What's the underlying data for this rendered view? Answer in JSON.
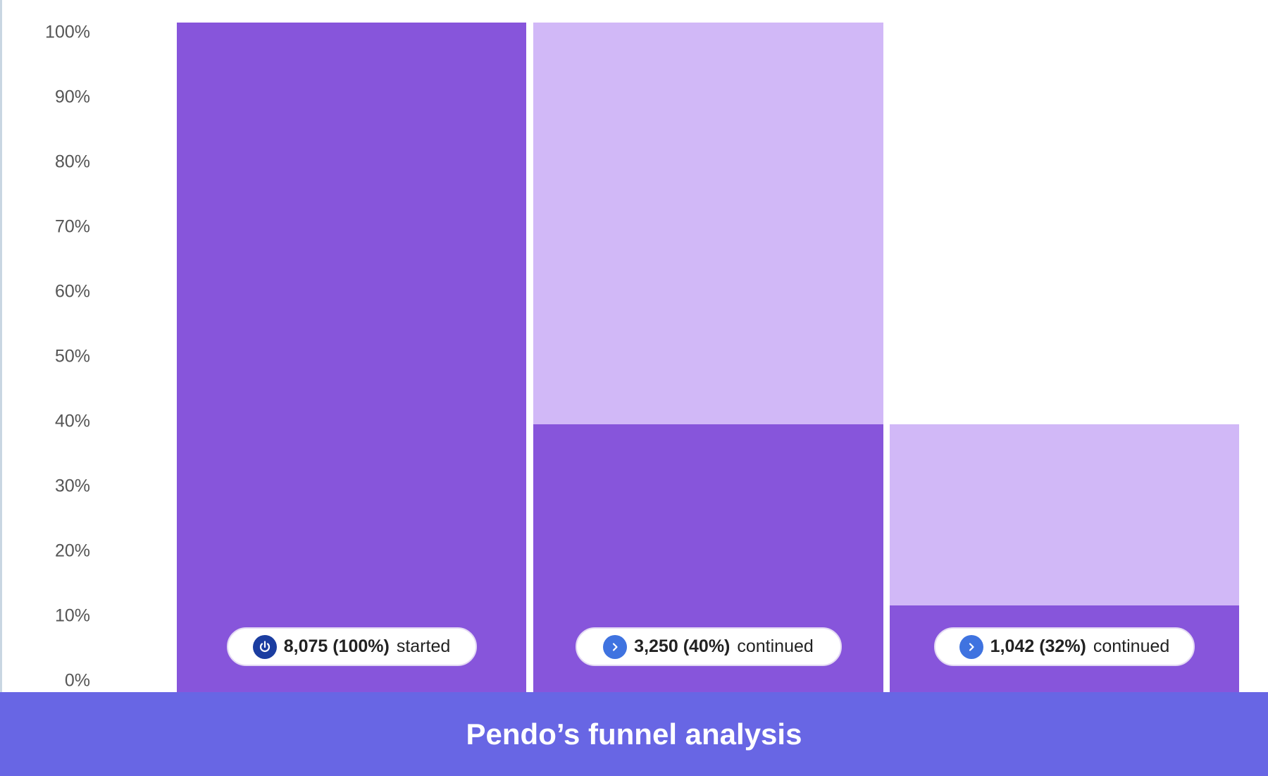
{
  "chart_data": {
    "type": "bar",
    "title": "",
    "y_ticks": [
      "100%",
      "90%",
      "80%",
      "70%",
      "60%",
      "50%",
      "40%",
      "30%",
      "20%",
      "10%",
      "0%"
    ],
    "ylim": [
      0,
      100
    ],
    "grid": false,
    "steps": [
      {
        "count": "8,075",
        "percent_label": "(100%)",
        "action": "started",
        "icon": "power-icon",
        "reached_pct": 100,
        "previous_pct": 100
      },
      {
        "count": "3,250",
        "percent_label": "(40%)",
        "action": "continued",
        "icon": "chevron-right-icon",
        "reached_pct": 40,
        "previous_pct": 100
      },
      {
        "count": "1,042",
        "percent_label": "(32%)",
        "action": "continued",
        "icon": "chevron-right-icon",
        "reached_pct": 12.9,
        "previous_pct": 40
      }
    ]
  },
  "footer": {
    "title": "Pendo’s funnel analysis"
  },
  "colors": {
    "reached": "#8755DB",
    "dropped": "#D1B8F7",
    "footer": "#6866E4",
    "start_icon": "#1B3DA0",
    "step_icon": "#3F73E0"
  }
}
